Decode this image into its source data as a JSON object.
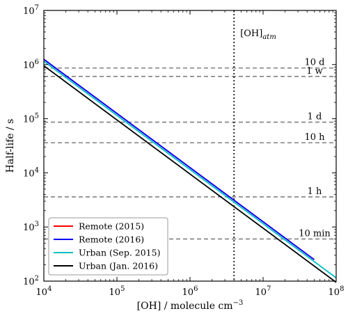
{
  "chart_data": {
    "type": "line",
    "xlabel": "[OH] / molecule cm",
    "xlabel_sup": "−3",
    "ylabel": "Half-life / s",
    "xscale": "log",
    "yscale": "log",
    "xlim": [
      10000,
      100000000
    ],
    "ylim": [
      100,
      10000000
    ],
    "x_tick_labels": [
      {
        "value": 10000,
        "base": "10",
        "exp": "4"
      },
      {
        "value": 100000,
        "base": "10",
        "exp": "5"
      },
      {
        "value": 1000000,
        "base": "10",
        "exp": "6"
      },
      {
        "value": 10000000,
        "base": "10",
        "exp": "7"
      },
      {
        "value": 100000000,
        "base": "10",
        "exp": "8"
      }
    ],
    "y_tick_labels": [
      {
        "value": 100,
        "base": "10",
        "exp": "2"
      },
      {
        "value": 1000,
        "base": "10",
        "exp": "3"
      },
      {
        "value": 10000,
        "base": "10",
        "exp": "4"
      },
      {
        "value": 100000,
        "base": "10",
        "exp": "5"
      },
      {
        "value": 1000000,
        "base": "10",
        "exp": "6"
      },
      {
        "value": 10000000,
        "base": "10",
        "exp": "7"
      }
    ],
    "series": [
      {
        "name": "Remote (2015)",
        "color": "#ff0000",
        "x": [
          10000,
          50000000
        ],
        "y": [
          1250000,
          250
        ]
      },
      {
        "name": "Remote (2016)",
        "color": "#0000ff",
        "x": [
          10000,
          50000000
        ],
        "y": [
          1250000,
          250
        ]
      },
      {
        "name": "Urban (Sep. 2015)",
        "color": "#00bfbf",
        "x": [
          10000,
          100000000
        ],
        "y": [
          1150000,
          115
        ]
      },
      {
        "name": "Urban (Jan. 2016)",
        "color": "#000000",
        "x": [
          10000,
          100000000
        ],
        "y": [
          950000,
          95
        ]
      }
    ],
    "reference_lines": [
      {
        "label": "10 d",
        "y": 864000
      },
      {
        "label": "1 w",
        "y": 604800
      },
      {
        "label": "1 d",
        "y": 86400
      },
      {
        "label": "10 h",
        "y": 36000
      },
      {
        "label": "1 h",
        "y": 3600
      },
      {
        "label": "10 min",
        "y": 600
      }
    ],
    "vertical_line": {
      "x": 4000000,
      "label": "[OH]",
      "label_sub": "atm"
    },
    "legend_position": "lower-left",
    "grid": false
  }
}
